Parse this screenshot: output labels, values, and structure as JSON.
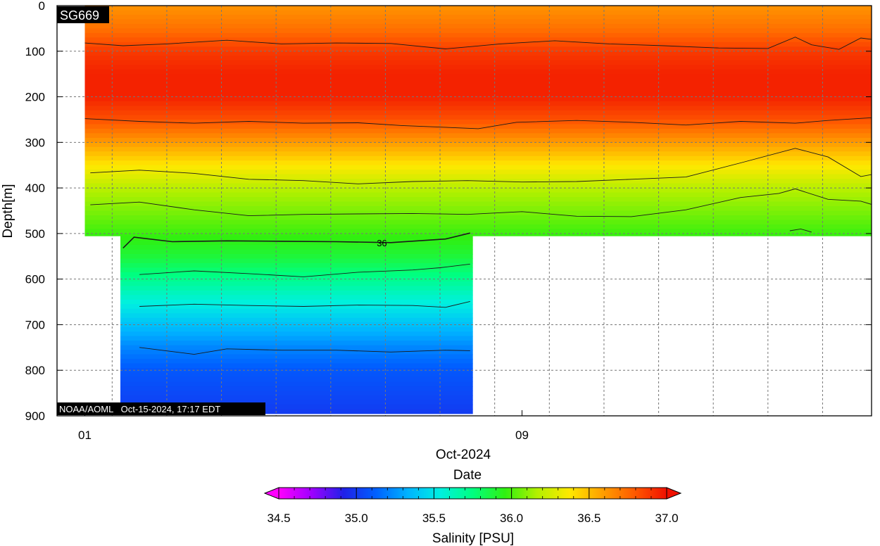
{
  "chart_data": {
    "type": "heatmap",
    "title": "SG669",
    "credit": "NOAA/AOML   Oct-15-2024, 17:17 EDT",
    "xlabel": "Date",
    "x_month_label": "Oct-2024",
    "x_tick_labels": [
      "01",
      "09"
    ],
    "x_range_days": [
      0.0,
      14.65
    ],
    "ylabel": "Depth[m]",
    "ylim": [
      0,
      900
    ],
    "y_inverted": true,
    "y_ticks": [
      0,
      100,
      200,
      300,
      400,
      500,
      600,
      700,
      800,
      900
    ],
    "grid": true,
    "colorbar": {
      "label": "Salinity [PSU]",
      "range": [
        34.5,
        37.0
      ],
      "ticks": [
        "34.5",
        "35.0",
        "35.5",
        "36.0",
        "36.5",
        "37.0"
      ],
      "extend": "both",
      "placement": "bottom",
      "colors": [
        "#ff00ff",
        "#a000ff",
        "#2020e8",
        "#0060ff",
        "#00b4ff",
        "#00f0e0",
        "#00ff80",
        "#30f010",
        "#b4f000",
        "#ffe800",
        "#ffa000",
        "#ff5a00",
        "#f01000"
      ]
    },
    "salinity_profile": {
      "depth": [
        0,
        50,
        100,
        150,
        200,
        250,
        300,
        350,
        400,
        450,
        500,
        550,
        600,
        650,
        700,
        750,
        800,
        900
      ],
      "value": [
        36.62,
        36.72,
        36.88,
        36.95,
        36.95,
        36.82,
        36.6,
        36.38,
        36.18,
        36.08,
        35.98,
        35.88,
        35.72,
        35.55,
        35.38,
        35.22,
        35.1,
        35.0
      ]
    },
    "coverage": {
      "shallow": {
        "start_day": 0.0,
        "end_day": 14.65,
        "max_depth": 505
      },
      "deep": {
        "start_day": 0.65,
        "end_day": 7.1,
        "max_depth": 895
      }
    },
    "contours": [
      {
        "label": "",
        "points": [
          [
            0.0,
            82
          ],
          [
            0.7,
            88
          ],
          [
            1.5,
            84
          ],
          [
            2.6,
            76
          ],
          [
            3.6,
            84
          ],
          [
            4.6,
            82
          ],
          [
            5.6,
            83
          ],
          [
            6.6,
            95
          ],
          [
            7.6,
            84
          ],
          [
            8.6,
            77
          ],
          [
            9.6,
            84
          ],
          [
            10.6,
            88
          ],
          [
            11.6,
            93
          ],
          [
            12.5,
            94
          ],
          [
            13.0,
            69
          ],
          [
            13.3,
            86
          ],
          [
            13.8,
            96
          ],
          [
            14.2,
            71
          ],
          [
            14.65,
            78
          ]
        ]
      },
      {
        "label": "",
        "points": [
          [
            0.0,
            248
          ],
          [
            1.0,
            254
          ],
          [
            2.0,
            258
          ],
          [
            3.0,
            254
          ],
          [
            4.0,
            258
          ],
          [
            5.0,
            257
          ],
          [
            5.8,
            263
          ],
          [
            7.2,
            270
          ],
          [
            7.9,
            256
          ],
          [
            9.0,
            252
          ],
          [
            10.0,
            256
          ],
          [
            11.0,
            262
          ],
          [
            12.0,
            254
          ],
          [
            13.0,
            258
          ],
          [
            13.6,
            252
          ],
          [
            14.65,
            244
          ]
        ]
      },
      {
        "label": "",
        "points": [
          [
            0.1,
            367
          ],
          [
            1.0,
            361
          ],
          [
            2.0,
            368
          ],
          [
            3.0,
            381
          ],
          [
            4.0,
            384
          ],
          [
            5.0,
            391
          ],
          [
            6.0,
            386
          ],
          [
            7.0,
            384
          ],
          [
            8.0,
            387
          ],
          [
            9.0,
            386
          ],
          [
            10.0,
            381
          ],
          [
            11.0,
            376
          ],
          [
            12.0,
            345
          ],
          [
            13.0,
            313
          ],
          [
            13.6,
            332
          ],
          [
            14.2,
            375
          ],
          [
            14.65,
            365
          ]
        ]
      },
      {
        "label": "",
        "points": [
          [
            0.1,
            437
          ],
          [
            1.0,
            431
          ],
          [
            2.0,
            448
          ],
          [
            3.0,
            461
          ],
          [
            4.0,
            458
          ],
          [
            5.0,
            457
          ],
          [
            6.0,
            456
          ],
          [
            7.0,
            458
          ],
          [
            8.0,
            452
          ],
          [
            9.0,
            462
          ],
          [
            10.0,
            463
          ],
          [
            11.0,
            448
          ],
          [
            12.0,
            421
          ],
          [
            12.7,
            412
          ],
          [
            13.0,
            402
          ],
          [
            13.6,
            425
          ],
          [
            14.2,
            429
          ],
          [
            14.5,
            440
          ],
          [
            14.65,
            452
          ]
        ]
      },
      {
        "label": "36",
        "points": [
          [
            0.7,
            532
          ],
          [
            0.9,
            508
          ],
          [
            1.6,
            518
          ],
          [
            2.6,
            516
          ],
          [
            3.6,
            517
          ],
          [
            4.6,
            518
          ],
          [
            5.6,
            520
          ],
          [
            6.6,
            512
          ],
          [
            7.05,
            499
          ]
        ]
      },
      {
        "label": "",
        "points": [
          [
            1.0,
            590
          ],
          [
            2.0,
            582
          ],
          [
            3.0,
            588
          ],
          [
            4.0,
            595
          ],
          [
            5.0,
            585
          ],
          [
            6.0,
            580
          ],
          [
            6.5,
            575
          ],
          [
            7.05,
            567
          ]
        ]
      },
      {
        "label": "",
        "points": [
          [
            1.0,
            660
          ],
          [
            2.0,
            655
          ],
          [
            3.0,
            658
          ],
          [
            4.0,
            660
          ],
          [
            5.0,
            657
          ],
          [
            6.0,
            658
          ],
          [
            6.6,
            662
          ],
          [
            7.05,
            649
          ]
        ]
      },
      {
        "label": "",
        "points": [
          [
            1.0,
            750
          ],
          [
            2.0,
            765
          ],
          [
            2.6,
            753
          ],
          [
            3.6,
            756
          ],
          [
            4.6,
            756
          ],
          [
            5.6,
            760
          ],
          [
            6.6,
            756
          ],
          [
            7.05,
            757
          ]
        ]
      },
      {
        "label": "",
        "points": [
          [
            12.9,
            494
          ],
          [
            13.1,
            490
          ],
          [
            13.3,
            497
          ]
        ]
      }
    ]
  }
}
